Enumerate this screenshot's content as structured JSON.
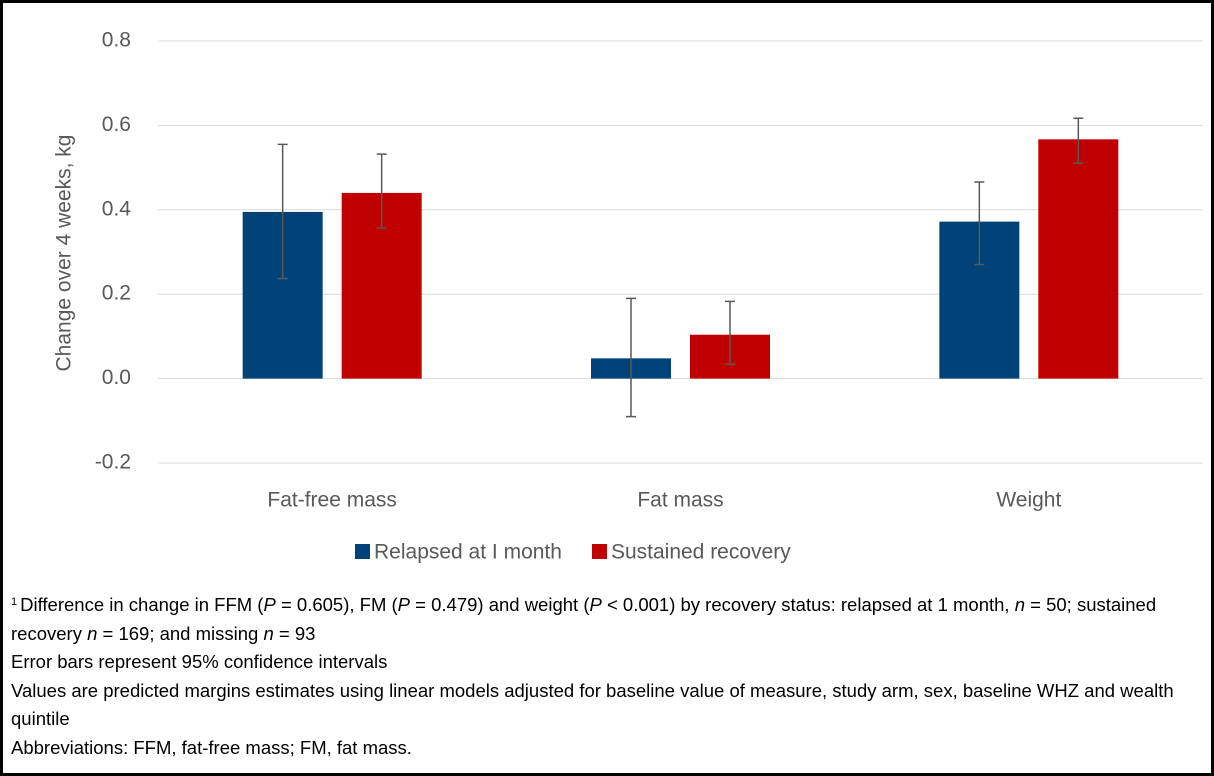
{
  "chart_data": {
    "type": "bar",
    "y_label": "Change over 4 weeks, kg",
    "categories": [
      "Fat-free mass",
      "Fat mass",
      "Weight"
    ],
    "series": [
      {
        "name": "Relapsed at I month",
        "color": "#004379",
        "values": [
          0.395,
          0.048,
          0.372
        ],
        "ci_low": [
          0.237,
          -0.09,
          0.27
        ],
        "ci_high": [
          0.555,
          0.19,
          0.466
        ]
      },
      {
        "name": "Sustained recovery",
        "color": "#c00000",
        "values": [
          0.44,
          0.104,
          0.567
        ],
        "ci_low": [
          0.357,
          0.034,
          0.51
        ],
        "ci_high": [
          0.532,
          0.183,
          0.617
        ]
      }
    ],
    "ylim": [
      -0.2,
      0.8
    ],
    "yticks": [
      -0.2,
      {
        "value": 0,
        "label": "0.0"
      },
      0.2,
      0.4,
      0.6,
      0.8
    ],
    "grid": true,
    "footnote_marker": "1",
    "notes": [
      [
        "Difference in change in FFM (",
        "P",
        " = 0.605), FM (",
        "P",
        " = 0.479) and weight (",
        "P",
        " < 0.001) by recovery status: relapsed at 1 month, ",
        "n",
        " = 50; sustained recovery ",
        "n",
        " = 169; and missing ",
        "n",
        " = 93"
      ],
      [
        "Error bars represent 95% confidence intervals"
      ],
      [
        "Values are predicted margins estimates using linear models adjusted for baseline value of measure, study arm, sex, baseline WHZ and wealth quintile"
      ],
      [
        "Abbreviations: FFM, fat-free mass; FM, fat mass."
      ]
    ]
  }
}
